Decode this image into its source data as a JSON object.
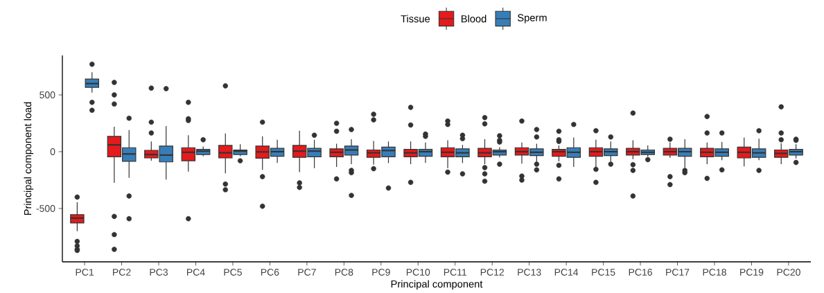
{
  "chart_data": {
    "type": "box",
    "xlabel": "Principal component",
    "ylabel": "Principal component load",
    "legend_title": "Tissue",
    "legend": "top",
    "grid": false,
    "categories": [
      "PC1",
      "PC2",
      "PC3",
      "PC4",
      "PC5",
      "PC6",
      "PC7",
      "PC8",
      "PC9",
      "PC10",
      "PC11",
      "PC12",
      "PC13",
      "PC14",
      "PC15",
      "PC16",
      "PC17",
      "PC18",
      "PC19",
      "PC20"
    ],
    "ylim": [
      -970,
      848
    ],
    "yticks": [
      -500,
      0,
      500
    ],
    "series": [
      {
        "name": "Blood",
        "color": "#e41a1c",
        "boxes": [
          {
            "low": -700,
            "q1": -628,
            "median": -585,
            "q3": -555,
            "high": -445,
            "outliers": [
              -400,
              -790,
              -830,
              -860,
              -870
            ]
          },
          {
            "low": -275,
            "q1": -45,
            "median": 60,
            "q3": 135,
            "high": 220,
            "outliers": [
              610,
              500,
              420,
              -570,
              -730,
              -860
            ]
          },
          {
            "low": -80,
            "q1": -55,
            "median": -25,
            "q3": 12,
            "high": 90,
            "outliers": [
              560,
              260,
              165
            ]
          },
          {
            "low": -175,
            "q1": -80,
            "median": -5,
            "q3": 35,
            "high": 145,
            "outliers": [
              435,
              290,
              275,
              -590
            ]
          },
          {
            "low": -190,
            "q1": -55,
            "median": -10,
            "q3": 55,
            "high": 160,
            "outliers": [
              580,
              -285,
              -335
            ]
          },
          {
            "low": -160,
            "q1": -57,
            "median": -2,
            "q3": 50,
            "high": 135,
            "outliers": [
              260,
              -220,
              -480
            ]
          },
          {
            "low": -180,
            "q1": -50,
            "median": 5,
            "q3": 55,
            "high": 185,
            "outliers": [
              -275,
              -315
            ]
          },
          {
            "low": -135,
            "q1": -45,
            "median": -5,
            "q3": 25,
            "high": 70,
            "outliers": [
              250,
              180,
              -240
            ]
          },
          {
            "low": -115,
            "q1": -50,
            "median": -10,
            "q3": 15,
            "high": 95,
            "outliers": [
              330,
              280,
              -150
            ]
          },
          {
            "low": -110,
            "q1": -45,
            "median": -10,
            "q3": 20,
            "high": 90,
            "outliers": [
              390,
              235,
              -270
            ]
          },
          {
            "low": -145,
            "q1": -45,
            "median": -5,
            "q3": 35,
            "high": 100,
            "outliers": [
              270,
              240,
              -180
            ]
          },
          {
            "low": -110,
            "q1": -45,
            "median": -10,
            "q3": 30,
            "high": 110,
            "outliers": [
              300,
              245,
              -140,
              -195,
              -260
            ]
          },
          {
            "low": -105,
            "q1": -30,
            "median": 0,
            "q3": 35,
            "high": 80,
            "outliers": [
              270,
              -215,
              -250
            ]
          },
          {
            "low": -85,
            "q1": -40,
            "median": 0,
            "q3": 20,
            "high": 55,
            "outliers": [
              180,
              105,
              90,
              -120,
              -240
            ]
          },
          {
            "low": -150,
            "q1": -40,
            "median": 0,
            "q3": 35,
            "high": 105,
            "outliers": [
              185,
              -155,
              -270
            ]
          },
          {
            "low": -65,
            "q1": -30,
            "median": 0,
            "q3": 30,
            "high": 100,
            "outliers": [
              340,
              -115,
              -165,
              -390
            ]
          },
          {
            "low": -55,
            "q1": -30,
            "median": 0,
            "q3": 30,
            "high": 80,
            "outliers": [
              110,
              -220,
              -290
            ]
          },
          {
            "low": -110,
            "q1": -45,
            "median": -5,
            "q3": 30,
            "high": 80,
            "outliers": [
              310,
              165,
              -235
            ]
          },
          {
            "low": -130,
            "q1": -55,
            "median": -5,
            "q3": 40,
            "high": 125
          },
          {
            "low": -110,
            "q1": -50,
            "median": -15,
            "q3": 15,
            "high": 75,
            "outliers": [
              395,
              165,
              105
            ]
          }
        ]
      },
      {
        "name": "Sperm",
        "color": "#377eb8",
        "boxes": [
          {
            "low": 520,
            "q1": 567,
            "median": 600,
            "q3": 640,
            "high": 700,
            "outliers": [
              770,
              435,
              365
            ]
          },
          {
            "low": -230,
            "q1": -85,
            "median": -20,
            "q3": 35,
            "high": 190,
            "outliers": [
              295,
              -390,
              -590
            ]
          },
          {
            "low": -245,
            "q1": -90,
            "median": -30,
            "q3": 50,
            "high": 225,
            "outliers": [
              555
            ]
          },
          {
            "low": -40,
            "q1": -25,
            "median": 5,
            "q3": 20,
            "high": 45,
            "outliers": [
              105
            ]
          },
          {
            "low": -40,
            "q1": -25,
            "median": 5,
            "q3": 15,
            "high": 65,
            "outliers": [
              -80
            ]
          },
          {
            "low": -100,
            "q1": -40,
            "median": 0,
            "q3": 30,
            "high": 105
          },
          {
            "low": -145,
            "q1": -45,
            "median": 5,
            "q3": 30,
            "high": 105,
            "outliers": [
              145
            ]
          },
          {
            "low": -110,
            "q1": -30,
            "median": 15,
            "q3": 50,
            "high": 110,
            "outliers": [
              195,
              -165,
              -185,
              -385
            ]
          },
          {
            "low": -100,
            "q1": -45,
            "median": 10,
            "q3": 40,
            "high": 90,
            "outliers": [
              -320
            ]
          },
          {
            "low": -100,
            "q1": -40,
            "median": 0,
            "q3": 20,
            "high": 80,
            "outliers": [
              155,
              135
            ]
          },
          {
            "low": -100,
            "q1": -45,
            "median": -10,
            "q3": 25,
            "high": 60,
            "outliers": [
              145,
              115,
              -195
            ]
          },
          {
            "low": -50,
            "q1": -30,
            "median": 0,
            "q3": 15,
            "high": 40,
            "outliers": [
              140,
              100,
              85,
              -110
            ]
          },
          {
            "low": -90,
            "q1": -35,
            "median": -5,
            "q3": 25,
            "high": 70,
            "outliers": [
              195,
              130,
              -110,
              -160
            ]
          },
          {
            "low": -135,
            "q1": -50,
            "median": -5,
            "q3": 35,
            "high": 125,
            "outliers": [
              240
            ]
          },
          {
            "low": -85,
            "q1": -35,
            "median": 0,
            "q3": 25,
            "high": 90,
            "outliers": [
              130,
              -110
            ]
          },
          {
            "low": -45,
            "q1": -25,
            "median": -5,
            "q3": 15,
            "high": 55,
            "outliers": [
              -70
            ]
          },
          {
            "low": -140,
            "q1": -40,
            "median": 0,
            "q3": 30,
            "high": 110,
            "outliers": [
              -165,
              -185
            ]
          },
          {
            "low": -75,
            "q1": -40,
            "median": -5,
            "q3": 25,
            "high": 85,
            "outliers": [
              165,
              -160
            ]
          },
          {
            "low": -75,
            "q1": -50,
            "median": -10,
            "q3": 25,
            "high": 115,
            "outliers": [
              185,
              -165
            ]
          },
          {
            "low": -60,
            "q1": -30,
            "median": 0,
            "q3": 20,
            "high": 65,
            "outliers": [
              110,
              100,
              -95
            ]
          }
        ]
      }
    ]
  }
}
